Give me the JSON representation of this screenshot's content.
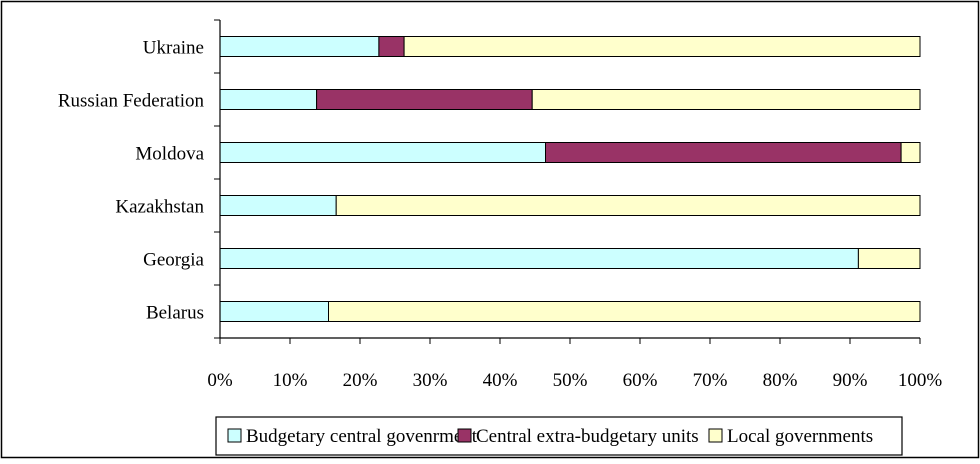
{
  "chart_data": {
    "type": "bar",
    "orientation": "horizontal",
    "stacked": "percent",
    "categories": [
      "Belarus",
      "Georgia",
      "Kazakhstan",
      "Moldova",
      "Russian Federation",
      "Ukraine"
    ],
    "series": [
      {
        "name": "Budgetary central govenrment",
        "color": "#CCFFFF",
        "values": [
          15.5,
          91.2,
          16.6,
          46.5,
          13.8,
          22.7
        ]
      },
      {
        "name": "Central extra-budgetary units",
        "color": "#993366",
        "values": [
          0,
          0,
          0,
          50.8,
          30.8,
          3.6
        ]
      },
      {
        "name": "Local governments",
        "color": "#FFFFCC",
        "values": [
          84.5,
          8.8,
          83.4,
          2.7,
          55.4,
          73.7
        ]
      }
    ],
    "x_ticks": [
      "0%",
      "10%",
      "20%",
      "30%",
      "40%",
      "50%",
      "60%",
      "70%",
      "80%",
      "90%",
      "100%"
    ],
    "xlim": [
      0,
      100
    ],
    "grid": false,
    "legend_position": "bottom"
  }
}
